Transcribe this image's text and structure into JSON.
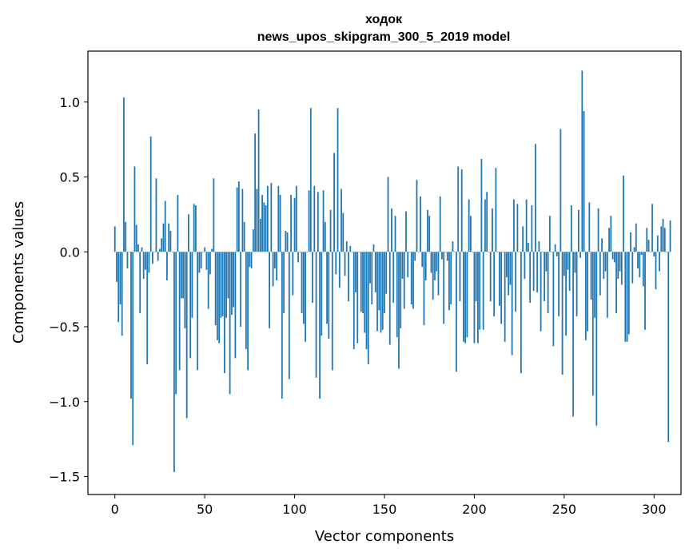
{
  "chart_data": {
    "type": "bar",
    "title": "ходок",
    "subtitle": "news_upos_skipgram_300_5_2019 model",
    "xlabel": "Vector components",
    "ylabel": "Components values",
    "xlim": [
      -15,
      315
    ],
    "ylim": [
      -1.62,
      1.34
    ],
    "xticks": [
      0,
      50,
      100,
      150,
      200,
      250,
      300
    ],
    "yticks": [
      -1.5,
      -1.0,
      -0.5,
      0.0,
      0.5,
      1.0
    ],
    "ytick_labels": [
      "−1.5",
      "−1.0",
      "−0.5",
      "0.0",
      "0.5",
      "1.0"
    ],
    "bar_color": "#1f77b4",
    "grid": false,
    "values": [
      0.17,
      -0.2,
      -0.47,
      -0.35,
      -0.56,
      1.03,
      0.2,
      -0.11,
      0.0,
      -0.98,
      -1.29,
      0.57,
      0.18,
      0.05,
      -0.41,
      0.03,
      -0.18,
      -0.12,
      -0.75,
      -0.14,
      0.77,
      -0.08,
      0.0,
      0.49,
      -0.06,
      0.02,
      0.09,
      0.19,
      0.34,
      -0.19,
      0.19,
      0.14,
      0.0,
      -1.47,
      -0.95,
      0.38,
      -0.79,
      -0.31,
      -0.31,
      -0.51,
      -1.11,
      0.25,
      -0.71,
      -0.44,
      0.32,
      0.31,
      -0.79,
      -0.14,
      -0.11,
      0.0,
      0.03,
      -0.12,
      -0.38,
      -0.15,
      0.02,
      0.49,
      -0.49,
      -0.59,
      -0.61,
      -0.44,
      -0.43,
      -0.81,
      -0.44,
      -0.31,
      -0.95,
      -0.42,
      -0.37,
      -0.71,
      0.43,
      0.47,
      -0.5,
      0.42,
      0.2,
      -0.65,
      -0.79,
      -0.1,
      -0.11,
      0.15,
      0.79,
      0.42,
      0.95,
      0.22,
      0.38,
      0.33,
      0.31,
      0.44,
      -0.51,
      0.46,
      -0.23,
      -0.11,
      -0.19,
      0.44,
      0.38,
      -0.98,
      -0.41,
      0.14,
      0.13,
      -0.85,
      0.38,
      -0.29,
      0.36,
      0.44,
      -0.07,
      0.0,
      -0.41,
      -0.48,
      -0.6,
      0.0,
      0.41,
      0.96,
      -0.34,
      0.44,
      -0.84,
      0.4,
      -0.98,
      -0.56,
      0.41,
      0.2,
      -0.48,
      -0.58,
      0.28,
      -0.79,
      0.66,
      -0.15,
      0.96,
      -0.24,
      0.42,
      0.26,
      -0.16,
      0.07,
      -0.33,
      0.04,
      0.0,
      -0.65,
      -0.27,
      -0.61,
      0.0,
      -0.4,
      -0.41,
      -0.54,
      -0.65,
      -0.75,
      -0.21,
      -0.35,
      0.05,
      -0.27,
      -0.53,
      -0.39,
      -0.54,
      -0.52,
      -0.41,
      -0.28,
      0.5,
      -0.62,
      0.29,
      -0.34,
      0.24,
      -0.57,
      -0.78,
      -0.51,
      -0.18,
      -0.38,
      0.27,
      -0.17,
      0.0,
      -0.35,
      -0.38,
      -0.06,
      0.48,
      0.0,
      0.37,
      -0.1,
      -0.49,
      -0.19,
      0.28,
      0.24,
      -0.14,
      -0.32,
      -0.19,
      -0.13,
      -0.29,
      0.37,
      -0.05,
      -0.48,
      0.0,
      -0.06,
      -0.39,
      -0.35,
      0.07,
      0.0,
      -0.8,
      0.57,
      -0.33,
      0.55,
      -0.6,
      -0.61,
      -0.57,
      0.35,
      0.24,
      0.0,
      -0.61,
      -0.33,
      -0.61,
      -0.52,
      0.62,
      -0.52,
      0.35,
      0.4,
      0.0,
      -0.33,
      0.29,
      -0.43,
      0.56,
      0.0,
      -0.36,
      -0.48,
      0.0,
      -0.6,
      -0.17,
      -0.29,
      -0.22,
      -0.69,
      0.35,
      -0.4,
      0.32,
      0.0,
      -0.81,
      0.17,
      -0.18,
      0.35,
      0.06,
      -0.34,
      0.31,
      -0.26,
      0.72,
      -0.27,
      0.07,
      -0.53,
      0.0,
      -0.33,
      -0.13,
      -0.41,
      0.24,
      0.0,
      -0.63,
      0.05,
      -0.03,
      -0.43,
      0.82,
      -0.82,
      -0.16,
      -0.56,
      -0.12,
      -0.26,
      0.31,
      -1.1,
      -0.14,
      -0.43,
      0.28,
      -0.04,
      1.21,
      0.94,
      -0.59,
      -0.53,
      0.33,
      -0.32,
      -0.96,
      -0.44,
      -1.16,
      0.29,
      -0.29,
      0.09,
      -0.18,
      -0.13,
      -0.44,
      0.16,
      0.24,
      -0.05,
      -0.07,
      -0.41,
      -0.18,
      -0.13,
      -0.22,
      0.51,
      -0.6,
      -0.6,
      -0.55,
      0.13,
      -0.21,
      0.03,
      0.19,
      -0.11,
      -0.17,
      -0.02,
      -0.23,
      -0.52,
      0.16,
      0.08,
      0.0,
      0.32,
      -0.03,
      -0.25,
      0.11,
      -0.13,
      0.17,
      0.22,
      0.16,
      0.0,
      -1.27,
      0.21
    ]
  }
}
